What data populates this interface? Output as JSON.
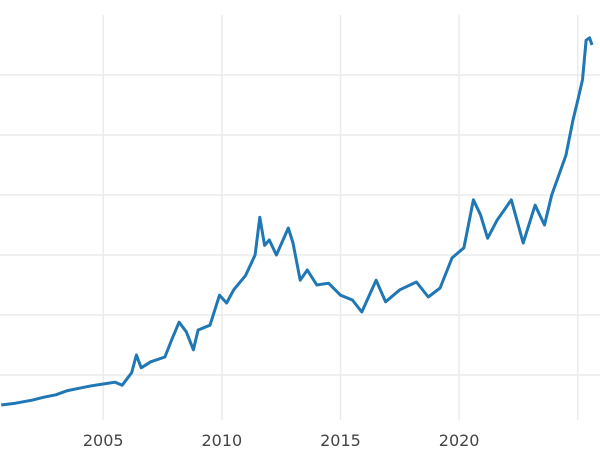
{
  "chart_data": {
    "type": "line",
    "title": "",
    "xlabel": "",
    "ylabel": "",
    "xlim": [
      2000.65,
      2025.6
    ],
    "ylim": [
      125,
      3500
    ],
    "grid": true,
    "x_ticks": [
      2005,
      2010,
      2015,
      2020,
      2025
    ],
    "x_tick_labels": [
      "2005",
      "2010",
      "2015",
      "2020",
      ""
    ],
    "y_gridlines": [
      500,
      1000,
      1500,
      2000,
      2500,
      3000
    ],
    "line_color": "#1f77b4",
    "series": [
      {
        "x": [
          2000.7,
          2001.3,
          2002,
          2002.5,
          2003,
          2003.5,
          2004,
          2004.5,
          2005,
          2005.5,
          2005.8,
          2006.2,
          2006.4,
          2006.6,
          2007,
          2007.6,
          2007.9,
          2008.2,
          2008.5,
          2008.8,
          2009,
          2009.5,
          2009.9,
          2010.2,
          2010.5,
          2011,
          2011.4,
          2011.6,
          2011.8,
          2012,
          2012.3,
          2012.8,
          2013,
          2013.3,
          2013.6,
          2014,
          2014.5,
          2015,
          2015.5,
          2015.9,
          2016.5,
          2016.9,
          2017.5,
          2018.2,
          2018.7,
          2019.2,
          2019.7,
          2020.2,
          2020.6,
          2020.9,
          2021.2,
          2021.6,
          2022.2,
          2022.7,
          2023.2,
          2023.6,
          2023.9,
          2024.2,
          2024.5,
          2024.8,
          2025.0,
          2025.2,
          2025.35,
          2025.5,
          2025.6
        ],
        "y": [
          250,
          265,
          290,
          315,
          335,
          370,
          390,
          410,
          425,
          440,
          415,
          520,
          667,
          560,
          610,
          650,
          800,
          940,
          860,
          710,
          875,
          915,
          1165,
          1100,
          1210,
          1330,
          1500,
          1815,
          1580,
          1625,
          1500,
          1725,
          1600,
          1290,
          1375,
          1250,
          1265,
          1165,
          1125,
          1025,
          1290,
          1110,
          1210,
          1275,
          1150,
          1225,
          1475,
          1560,
          1960,
          1835,
          1640,
          1790,
          1960,
          1600,
          1915,
          1750,
          2000,
          2165,
          2330,
          2625,
          2790,
          2960,
          3290,
          3310,
          3250
        ]
      }
    ]
  }
}
